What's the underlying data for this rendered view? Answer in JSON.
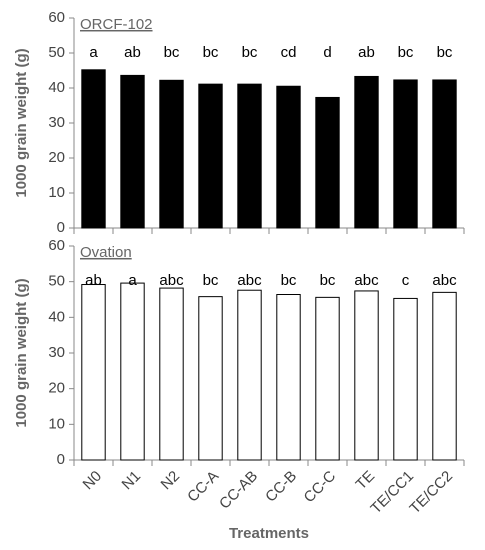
{
  "chart_data": [
    {
      "type": "bar",
      "panel_label": "ORCF-102",
      "y_label": "1000 grain weight (g)",
      "values": [
        45.2,
        43.6,
        42.2,
        41.1,
        41.1,
        40.5,
        37.3,
        43.3,
        42.3,
        42.3
      ],
      "letters": [
        "a",
        "ab",
        "bc",
        "bc",
        "bc",
        "cd",
        "d",
        "ab",
        "bc",
        "bc"
      ],
      "color": "#000000",
      "edgecolor": "#000000",
      "ylim": [
        0,
        60
      ],
      "yticks": [
        0,
        10,
        20,
        30,
        40,
        50,
        60
      ]
    },
    {
      "type": "bar",
      "panel_label": "Ovation",
      "y_label": "1000 grain weight (g)",
      "x_label": "Treatments",
      "categories": [
        "N0",
        "N1",
        "N2",
        "CC-A",
        "CC-AB",
        "CC-B",
        "CC-C",
        "TE",
        "TE/CC1",
        "TE/CC2"
      ],
      "values": [
        49.2,
        49.6,
        48.2,
        45.8,
        47.6,
        46.4,
        45.6,
        47.4,
        45.3,
        47.0
      ],
      "letters": [
        "ab",
        "a",
        "abc",
        "bc",
        "abc",
        "bc",
        "bc",
        "abc",
        "c",
        "abc"
      ],
      "color": "#ffffff",
      "edgecolor": "#000000",
      "ylim": [
        0,
        60
      ],
      "yticks": [
        0,
        10,
        20,
        30,
        40,
        50,
        60
      ]
    }
  ]
}
